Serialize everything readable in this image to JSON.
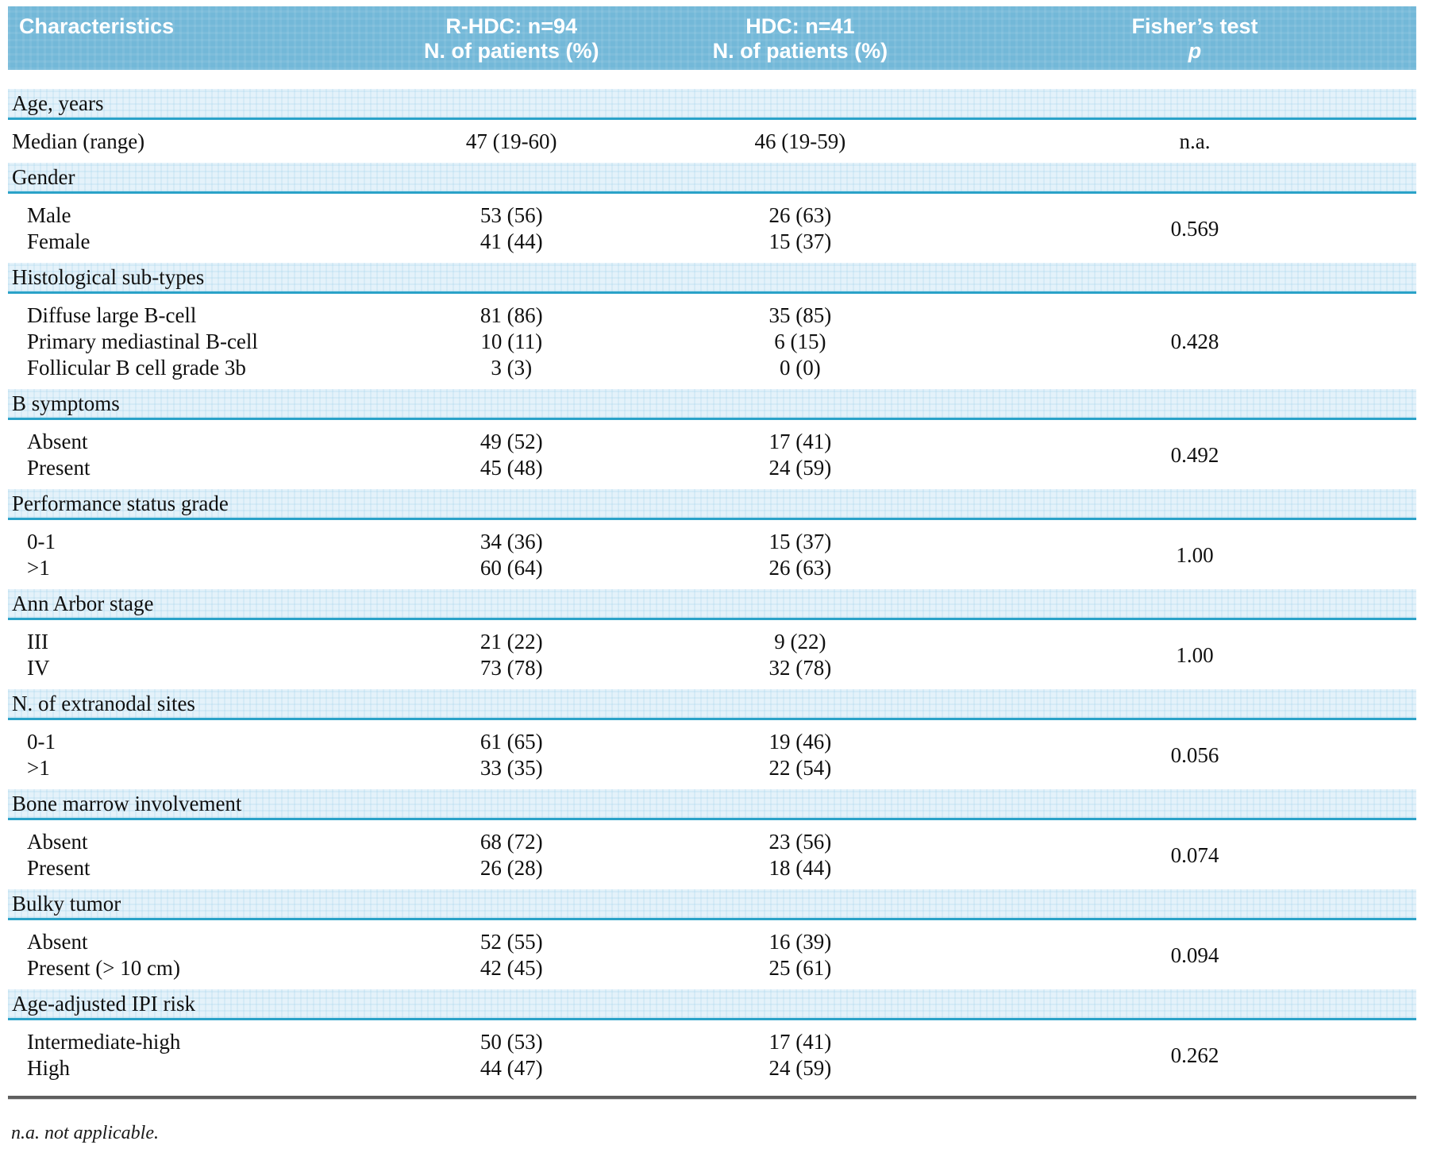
{
  "table": {
    "header": {
      "col1": "Characteristics",
      "col2_line1": "R-HDC: n=94",
      "col2_line2": "N. of patients (%)",
      "col3_line1": "HDC: n=41",
      "col3_line2": "N. of patients (%)",
      "col4_line1": "Fisher’s test",
      "col4_line2": "p"
    },
    "sections": [
      {
        "title": "Age, years",
        "p": "n.a.",
        "rows": [
          {
            "label": "Median (range)",
            "indent": false,
            "rhdc": "47 (19-60)",
            "hdc": "46 (19-59)"
          }
        ]
      },
      {
        "title": "Gender",
        "p": "0.569",
        "rows": [
          {
            "label": "Male",
            "indent": true,
            "rhdc": "53 (56)",
            "hdc": "26 (63)"
          },
          {
            "label": "Female",
            "indent": true,
            "rhdc": "41 (44)",
            "hdc": "15 (37)"
          }
        ]
      },
      {
        "title": "Histological sub-types",
        "p": "0.428",
        "rows": [
          {
            "label": "Diffuse large B-cell",
            "indent": true,
            "rhdc": "81 (86)",
            "hdc": "35 (85)"
          },
          {
            "label": "Primary mediastinal B-cell",
            "indent": true,
            "rhdc": "10 (11)",
            "hdc": "6 (15)"
          },
          {
            "label": "Follicular B cell grade 3b",
            "indent": true,
            "rhdc": "3 (3)",
            "hdc": "0 (0)"
          }
        ]
      },
      {
        "title": "B symptoms",
        "p": "0.492",
        "rows": [
          {
            "label": "Absent",
            "indent": true,
            "rhdc": "49 (52)",
            "hdc": "17 (41)"
          },
          {
            "label": "Present",
            "indent": true,
            "rhdc": "45 (48)",
            "hdc": "24 (59)"
          }
        ]
      },
      {
        "title": "Performance status grade",
        "p": "1.00",
        "rows": [
          {
            "label": "0-1",
            "indent": true,
            "rhdc": "34 (36)",
            "hdc": "15 (37)"
          },
          {
            "label": ">1",
            "indent": true,
            "rhdc": "60 (64)",
            "hdc": "26 (63)"
          }
        ]
      },
      {
        "title": "Ann Arbor stage",
        "p": "1.00",
        "rows": [
          {
            "label": "III",
            "indent": true,
            "rhdc": "21 (22)",
            "hdc": "9 (22)"
          },
          {
            "label": "IV",
            "indent": true,
            "rhdc": "73 (78)",
            "hdc": "32 (78)"
          }
        ]
      },
      {
        "title": "N. of extranodal sites",
        "p": "0.056",
        "rows": [
          {
            "label": "0-1",
            "indent": true,
            "rhdc": "61 (65)",
            "hdc": "19 (46)"
          },
          {
            "label": ">1",
            "indent": true,
            "rhdc": "33 (35)",
            "hdc": "22 (54)"
          }
        ]
      },
      {
        "title": "Bone marrow involvement",
        "p": "0.074",
        "rows": [
          {
            "label": "Absent",
            "indent": true,
            "rhdc": "68 (72)",
            "hdc": "23 (56)"
          },
          {
            "label": "Present",
            "indent": true,
            "rhdc": "26 (28)",
            "hdc": "18 (44)"
          }
        ]
      },
      {
        "title": "Bulky tumor",
        "p": "0.094",
        "rows": [
          {
            "label": "Absent",
            "indent": true,
            "rhdc": "52 (55)",
            "hdc": "16 (39)"
          },
          {
            "label": "Present (> 10 cm)",
            "indent": true,
            "rhdc": "42 (45)",
            "hdc": "25 (61)"
          }
        ]
      },
      {
        "title": "Age-adjusted IPI risk",
        "p": "0.262",
        "rows": [
          {
            "label": "Intermediate-high",
            "indent": true,
            "rhdc": "50 (53)",
            "hdc": "17 (41)"
          },
          {
            "label": "High",
            "indent": true,
            "rhdc": "44 (47)",
            "hdc": "24 (59)"
          }
        ]
      }
    ],
    "footnote": "n.a. not applicable.",
    "colors": {
      "header_bg": "#73b8d8",
      "section_band_bg": "#e4f2fa",
      "section_underline": "#2aa2c8",
      "foot_rule": "#5f5f5f",
      "text": "#101010"
    }
  }
}
